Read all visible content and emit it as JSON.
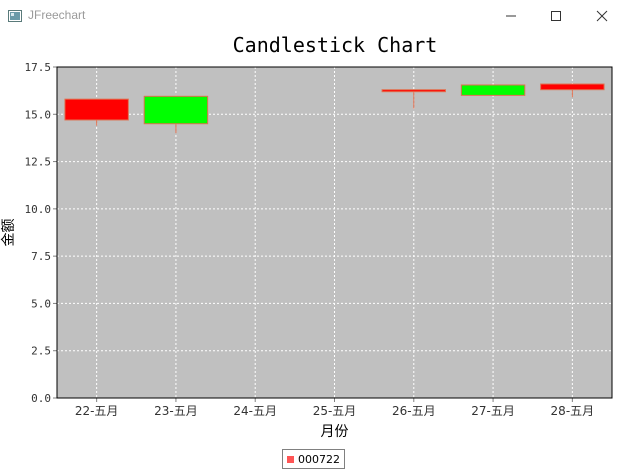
{
  "window": {
    "title": "JFreechart",
    "controls": [
      "minimize",
      "maximize",
      "close"
    ]
  },
  "chart_data": {
    "type": "candlestick",
    "title": "Candlestick Chart",
    "xlabel": "月份",
    "ylabel": "金额",
    "ylim": [
      0,
      17.5
    ],
    "y_ticks": [
      "0.0",
      "2.5",
      "5.0",
      "7.5",
      "10.0",
      "12.5",
      "15.0",
      "17.5"
    ],
    "categories": [
      "22-五月",
      "23-五月",
      "24-五月",
      "25-五月",
      "26-五月",
      "27-五月",
      "28-五月"
    ],
    "grid": true,
    "legend_position": "bottom",
    "series": [
      {
        "name": "000722",
        "color": "#ff5555",
        "up_color": "#00ff00",
        "down_color": "#ff0000",
        "candles": [
          {
            "date": "22-五月",
            "open": 15.8,
            "high": 15.8,
            "low": 14.4,
            "close": 14.7
          },
          {
            "date": "23-五月",
            "open": 14.5,
            "high": 16.0,
            "low": 14.0,
            "close": 15.95
          },
          {
            "date": "26-五月",
            "open": 16.3,
            "high": 16.3,
            "low": 15.3,
            "close": 16.3
          },
          {
            "date": "27-五月",
            "open": 16.0,
            "high": 16.55,
            "low": 16.0,
            "close": 16.55
          },
          {
            "date": "28-五月",
            "open": 16.6,
            "high": 16.6,
            "low": 15.9,
            "close": 16.3
          }
        ]
      }
    ]
  },
  "theme": {
    "plot_background": "#c0c0c0",
    "grid_color": "#ffffff",
    "wick_color": "#e07050",
    "outline_color": "#808080"
  }
}
